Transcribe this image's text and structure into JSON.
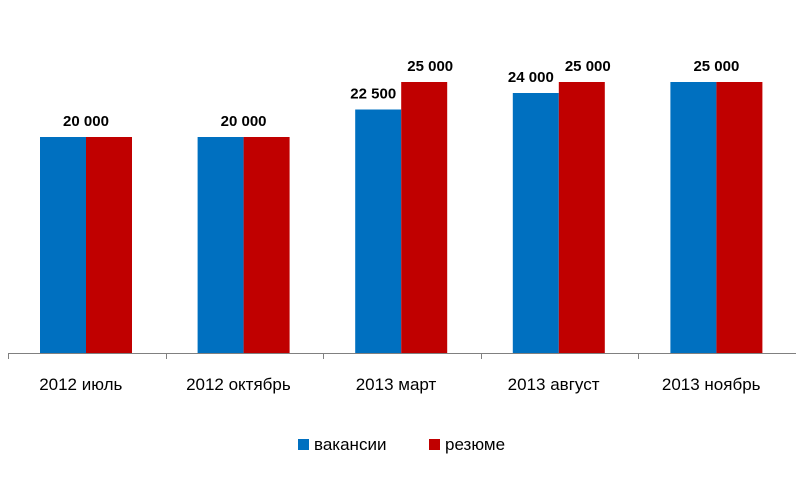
{
  "chart_data": {
    "type": "bar",
    "categories": [
      "2012 июль",
      "2012 октябрь",
      "2013 март",
      "2013 август",
      "2013 ноябрь"
    ],
    "series": [
      {
        "name": "вакансии",
        "color": "#0070C0",
        "values": [
          20000,
          20000,
          22500,
          24000,
          25000
        ]
      },
      {
        "name": "резюме",
        "color": "#C00000",
        "values": [
          20000,
          20000,
          25000,
          25000,
          25000
        ]
      }
    ],
    "data_labels": [
      [
        "",
        "20 000"
      ],
      [
        "",
        "20 000"
      ],
      [
        "22 500",
        "25 000"
      ],
      [
        "24 000",
        "25 000"
      ],
      [
        "",
        "25 000"
      ]
    ],
    "legend_position": "bottom",
    "grid": false,
    "title": "",
    "xlabel": "",
    "ylabel": ""
  }
}
